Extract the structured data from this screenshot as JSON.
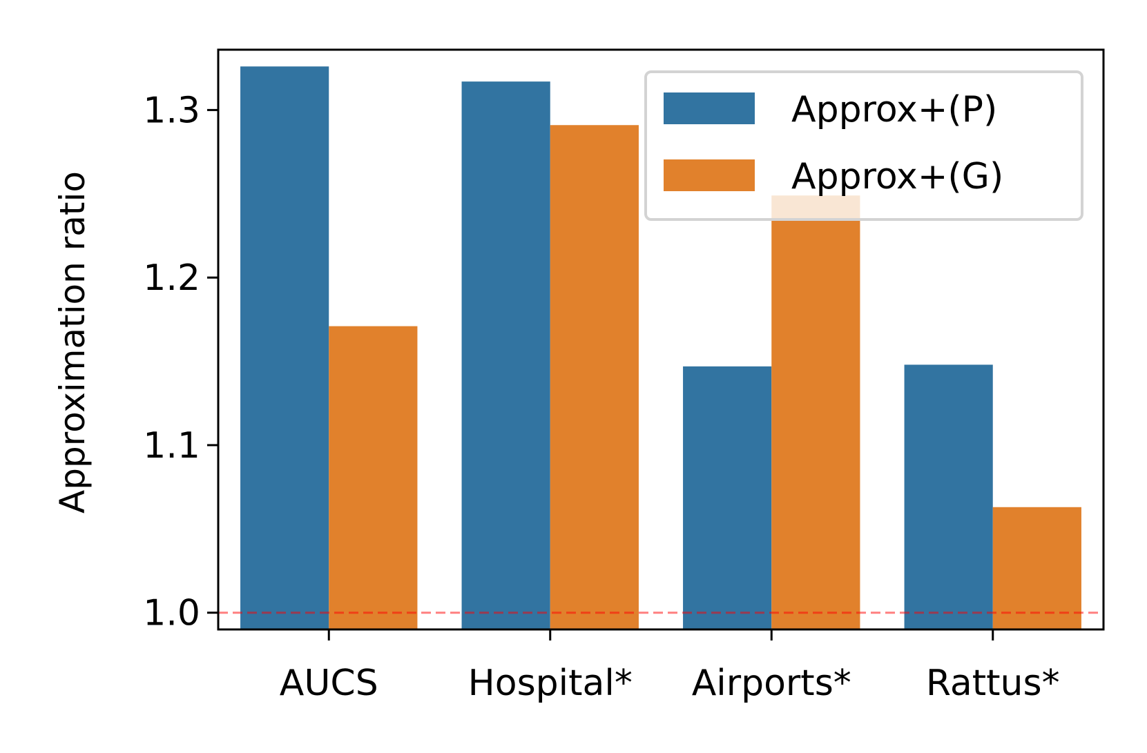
{
  "chart_data": {
    "type": "bar",
    "title": "",
    "xlabel": "",
    "ylabel": "Approximation ratio",
    "categories": [
      "AUCS",
      "Hospital*",
      "Airports*",
      "Rattus*"
    ],
    "series": [
      {
        "name": "Approx+(P)",
        "color": "#3274a1",
        "values": [
          1.326,
          1.317,
          1.147,
          1.148
        ]
      },
      {
        "name": "Approx+(G)",
        "color": "#e1812c",
        "values": [
          1.171,
          1.291,
          1.249,
          1.063
        ]
      }
    ],
    "ylim": [
      0.99,
      1.336
    ],
    "yticks": [
      1.0,
      1.1,
      1.2,
      1.3
    ],
    "ytick_labels": [
      "1.0",
      "1.1",
      "1.2",
      "1.3"
    ],
    "reference_line": {
      "value": 1.0,
      "color": "#ff0000",
      "style": "dashed"
    },
    "legend_position": "top-right",
    "grid": false
  }
}
